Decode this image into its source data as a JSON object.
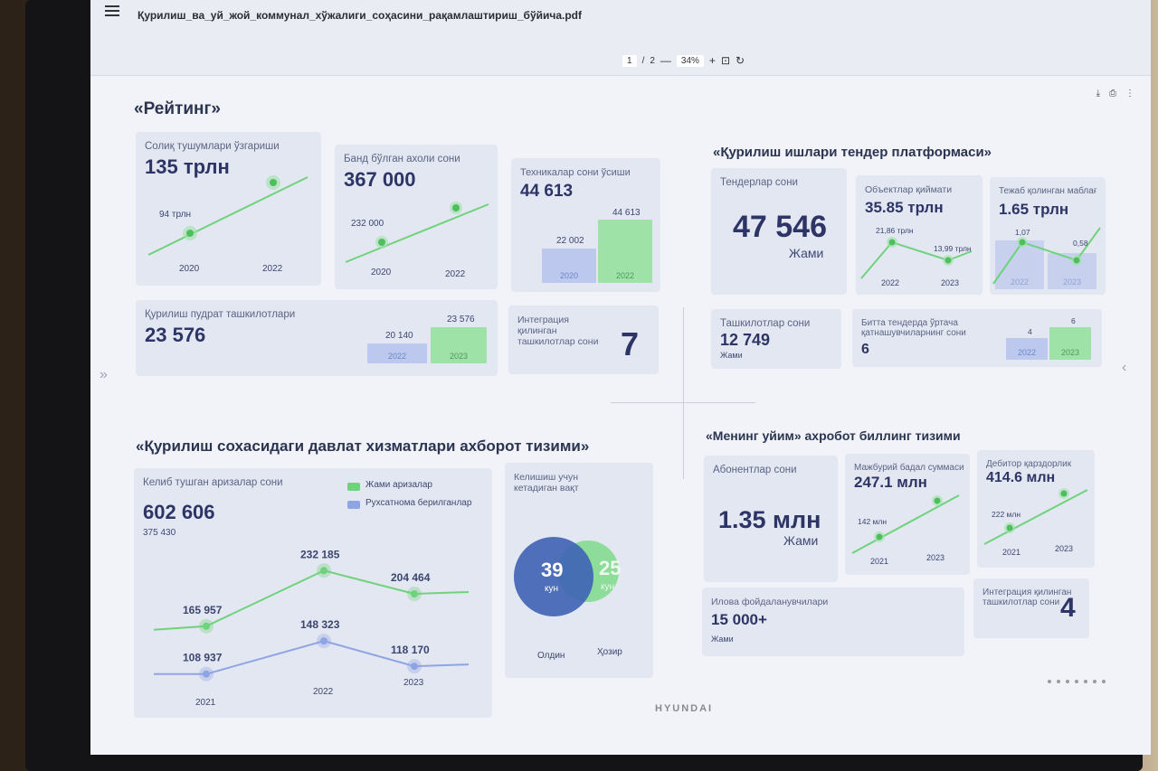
{
  "viewer": {
    "file_name": "Қурилиш_ва_уй_жой_коммунал_хўжалиги_соҳасини_рақамлаштириш_бўйича.pdf",
    "page_current": "1",
    "page_sep": "/",
    "page_total": "2",
    "zoom_out": "—",
    "zoom": "34%",
    "zoom_in": "+"
  },
  "rating": {
    "title": "«Рейтинг»",
    "tax": {
      "label": "Солиқ тушумлари ўзгариши",
      "value": "135 трлн",
      "points": [
        {
          "year": "2020",
          "value": "94 трлн"
        },
        {
          "year": "2022",
          "value": "135 трлн"
        }
      ]
    },
    "employed": {
      "label": "Банд бўлган ахоли сони",
      "value": "367 000",
      "points": [
        {
          "year": "2020",
          "value": "232 000"
        },
        {
          "year": "2022",
          "value": "367 000"
        }
      ]
    },
    "machinery": {
      "label": "Техникалар сони ўсиши",
      "value": "44 613",
      "bars": [
        {
          "year": "2020",
          "value": "22 002"
        },
        {
          "year": "2022",
          "value": "44 613"
        }
      ]
    },
    "contractors": {
      "label": "Қурилиш пудрат ташкилотлари",
      "value": "23 576",
      "bars": [
        {
          "year": "2022",
          "value": "20 140"
        },
        {
          "year": "2023",
          "value": "23 576"
        }
      ]
    },
    "integration": {
      "label": "Интеграция қилинган ташкилотлар сони",
      "value": "7"
    }
  },
  "tender": {
    "title": "«Қурилиш ишлари тендер платформаси»",
    "count": {
      "label": "Тендерлар сони",
      "value": "47 546",
      "unit": "Жами"
    },
    "objects": {
      "label": "Объектлар қиймати",
      "value": "35.85 трлн",
      "points": [
        {
          "year": "2022",
          "value": "21,86 трлн"
        },
        {
          "year": "2023",
          "value": "13,99 трлн"
        }
      ]
    },
    "saved": {
      "label": "Тежаб қолинган маблағ",
      "value": "1.65 трлн",
      "points": [
        {
          "year": "2022",
          "value": "1,07"
        },
        {
          "year": "2023",
          "value": "0,58"
        }
      ]
    },
    "orgs": {
      "label": "Ташкилотлар сони",
      "value": "12 749",
      "unit": "Жами"
    },
    "avg": {
      "label": "Битта тендерда ўртача қатнашувчиларнинг сони",
      "value": "6",
      "bars": [
        {
          "year": "2022",
          "value": "4"
        },
        {
          "year": "2023",
          "value": "6"
        }
      ]
    }
  },
  "gov": {
    "title": "«Қурилиш сохасидаги давлат хизматлари ахборот тизими»",
    "apps": {
      "label": "Келиб тушган аризалар сони",
      "total": "602 606",
      "sub": "375 430"
    },
    "legend": {
      "total": "Жами аризалар",
      "permits": "Рухсатнома берилганлар"
    },
    "years": [
      "2021",
      "2022",
      "2023"
    ],
    "series_total": [
      "165 957",
      "232 185",
      "204 464"
    ],
    "series_permits": [
      "108 937",
      "148 323",
      "118 170"
    ],
    "colors": {
      "total": "#6fd27c",
      "permits": "#8fa4e3"
    },
    "time": {
      "label": "Келишиш учун кетадиган вақт",
      "before_value": "39",
      "before_unit": "кун",
      "now_value": "25",
      "now_unit": "кун",
      "before_label": "Олдин",
      "now_label": "Ҳозир"
    }
  },
  "billing": {
    "title": "«Менинг уйим» ахробот биллинг тизими",
    "subs": {
      "label": "Абонентлар сони",
      "value": "1.35 млн",
      "unit": "Жами"
    },
    "fee": {
      "label": "Мажбурий бадал суммаси",
      "value": "247.1 млн",
      "points": [
        {
          "year": "2021",
          "value": "142 млн"
        },
        {
          "year": "2023",
          "value": ""
        }
      ]
    },
    "debt": {
      "label": "Дебитор қарздорлик",
      "value": "414.6 млн",
      "points": [
        {
          "year": "2021",
          "value": "222 млн"
        },
        {
          "year": "2023",
          "value": ""
        }
      ]
    },
    "app_users": {
      "label": "Илова фойдаланувчилари",
      "value": "15 000+",
      "unit": "Жами"
    },
    "integration": {
      "label": "Интеграция қилинган ташкилотлар сони",
      "value": "4"
    }
  },
  "chart_data": [
    {
      "type": "line",
      "title": "Келиб тушган аризалар сони",
      "categories": [
        "2021",
        "2022",
        "2023"
      ],
      "series": [
        {
          "name": "Жами аризалар",
          "values": [
            165957,
            232185,
            204464
          ]
        },
        {
          "name": "Рухсатнома берилганлар",
          "values": [
            108937,
            148323,
            118170
          ]
        }
      ]
    }
  ],
  "monitor": {
    "brand": "HYUNDAI"
  }
}
